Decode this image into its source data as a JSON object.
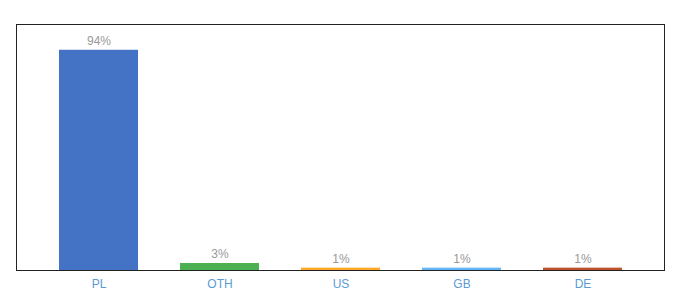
{
  "chart_data": {
    "type": "bar",
    "categories": [
      "PL",
      "OTH",
      "US",
      "GB",
      "DE"
    ],
    "values": [
      94,
      3,
      1,
      1,
      1
    ],
    "value_labels": [
      "94%",
      "3%",
      "1%",
      "1%",
      "1%"
    ],
    "colors": [
      "#4472c4",
      "#4caf50",
      "#ffa726",
      "#64b5f6",
      "#c0522a"
    ],
    "ylim": [
      0,
      105
    ],
    "data_labels": true,
    "tick_labels": "x"
  }
}
